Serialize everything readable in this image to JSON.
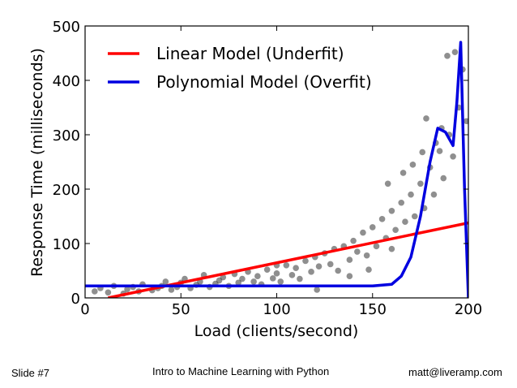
{
  "slide": {
    "footer_left": "Slide #7",
    "footer_center": "Intro to Machine Learning with Python",
    "footer_right": "matt@liveramp.com"
  },
  "chart_data": {
    "type": "scatter",
    "xlabel": "Load (clients/second)",
    "ylabel": "Response Time (milliseconds)",
    "xlim": [
      0,
      200
    ],
    "ylim": [
      0,
      500
    ],
    "x_ticks": [
      0,
      50,
      100,
      150,
      200
    ],
    "y_ticks": [
      0,
      100,
      200,
      300,
      400,
      500
    ],
    "legend_position": "top-left",
    "grid": false,
    "colors": {
      "points": "#333333",
      "linear": "#ff0000",
      "polynomial": "#0000e0"
    },
    "scatter_points": [
      [
        5,
        12
      ],
      [
        8,
        18
      ],
      [
        12,
        10
      ],
      [
        15,
        22
      ],
      [
        20,
        8
      ],
      [
        22,
        16
      ],
      [
        25,
        20
      ],
      [
        28,
        12
      ],
      [
        30,
        25
      ],
      [
        35,
        14
      ],
      [
        38,
        18
      ],
      [
        40,
        22
      ],
      [
        42,
        30
      ],
      [
        45,
        15
      ],
      [
        48,
        20
      ],
      [
        50,
        28
      ],
      [
        52,
        35
      ],
      [
        55,
        18
      ],
      [
        58,
        24
      ],
      [
        60,
        30
      ],
      [
        62,
        42
      ],
      [
        65,
        20
      ],
      [
        68,
        26
      ],
      [
        70,
        32
      ],
      [
        72,
        38
      ],
      [
        75,
        22
      ],
      [
        78,
        44
      ],
      [
        80,
        28
      ],
      [
        82,
        35
      ],
      [
        85,
        48
      ],
      [
        88,
        30
      ],
      [
        90,
        40
      ],
      [
        92,
        25
      ],
      [
        95,
        52
      ],
      [
        98,
        36
      ],
      [
        100,
        45
      ],
      [
        102,
        30
      ],
      [
        105,
        60
      ],
      [
        108,
        42
      ],
      [
        110,
        55
      ],
      [
        112,
        35
      ],
      [
        115,
        68
      ],
      [
        118,
        48
      ],
      [
        120,
        75
      ],
      [
        122,
        58
      ],
      [
        125,
        82
      ],
      [
        128,
        62
      ],
      [
        130,
        90
      ],
      [
        132,
        50
      ],
      [
        135,
        95
      ],
      [
        138,
        70
      ],
      [
        140,
        105
      ],
      [
        142,
        85
      ],
      [
        145,
        120
      ],
      [
        147,
        78
      ],
      [
        150,
        130
      ],
      [
        152,
        95
      ],
      [
        155,
        145
      ],
      [
        157,
        110
      ],
      [
        160,
        160
      ],
      [
        162,
        125
      ],
      [
        165,
        175
      ],
      [
        167,
        140
      ],
      [
        170,
        190
      ],
      [
        172,
        150
      ],
      [
        175,
        210
      ],
      [
        177,
        165
      ],
      [
        180,
        240
      ],
      [
        182,
        190
      ],
      [
        185,
        270
      ],
      [
        187,
        220
      ],
      [
        190,
        300
      ],
      [
        192,
        260
      ],
      [
        195,
        350
      ],
      [
        197,
        420
      ],
      [
        189,
        445
      ],
      [
        193,
        452
      ],
      [
        178,
        330
      ],
      [
        183,
        285
      ],
      [
        199,
        325
      ],
      [
        121,
        15
      ],
      [
        100,
        60
      ],
      [
        148,
        52
      ],
      [
        160,
        90
      ],
      [
        138,
        40
      ],
      [
        158,
        210
      ],
      [
        166,
        230
      ],
      [
        171,
        245
      ],
      [
        176,
        268
      ],
      [
        186,
        312
      ]
    ],
    "series": [
      {
        "name": "Linear Model (Underfit)",
        "type": "line",
        "x": [
          12,
          200
        ],
        "y": [
          0,
          138
        ]
      },
      {
        "name": "Polynomial Model (Overfit)",
        "type": "line",
        "x": [
          0,
          50,
          100,
          150,
          160,
          165,
          170,
          175,
          180,
          184,
          188,
          192,
          194,
          196,
          198,
          200
        ],
        "y": [
          22,
          22,
          22,
          22,
          25,
          40,
          75,
          150,
          250,
          312,
          305,
          280,
          360,
          470,
          200,
          0
        ]
      }
    ]
  }
}
